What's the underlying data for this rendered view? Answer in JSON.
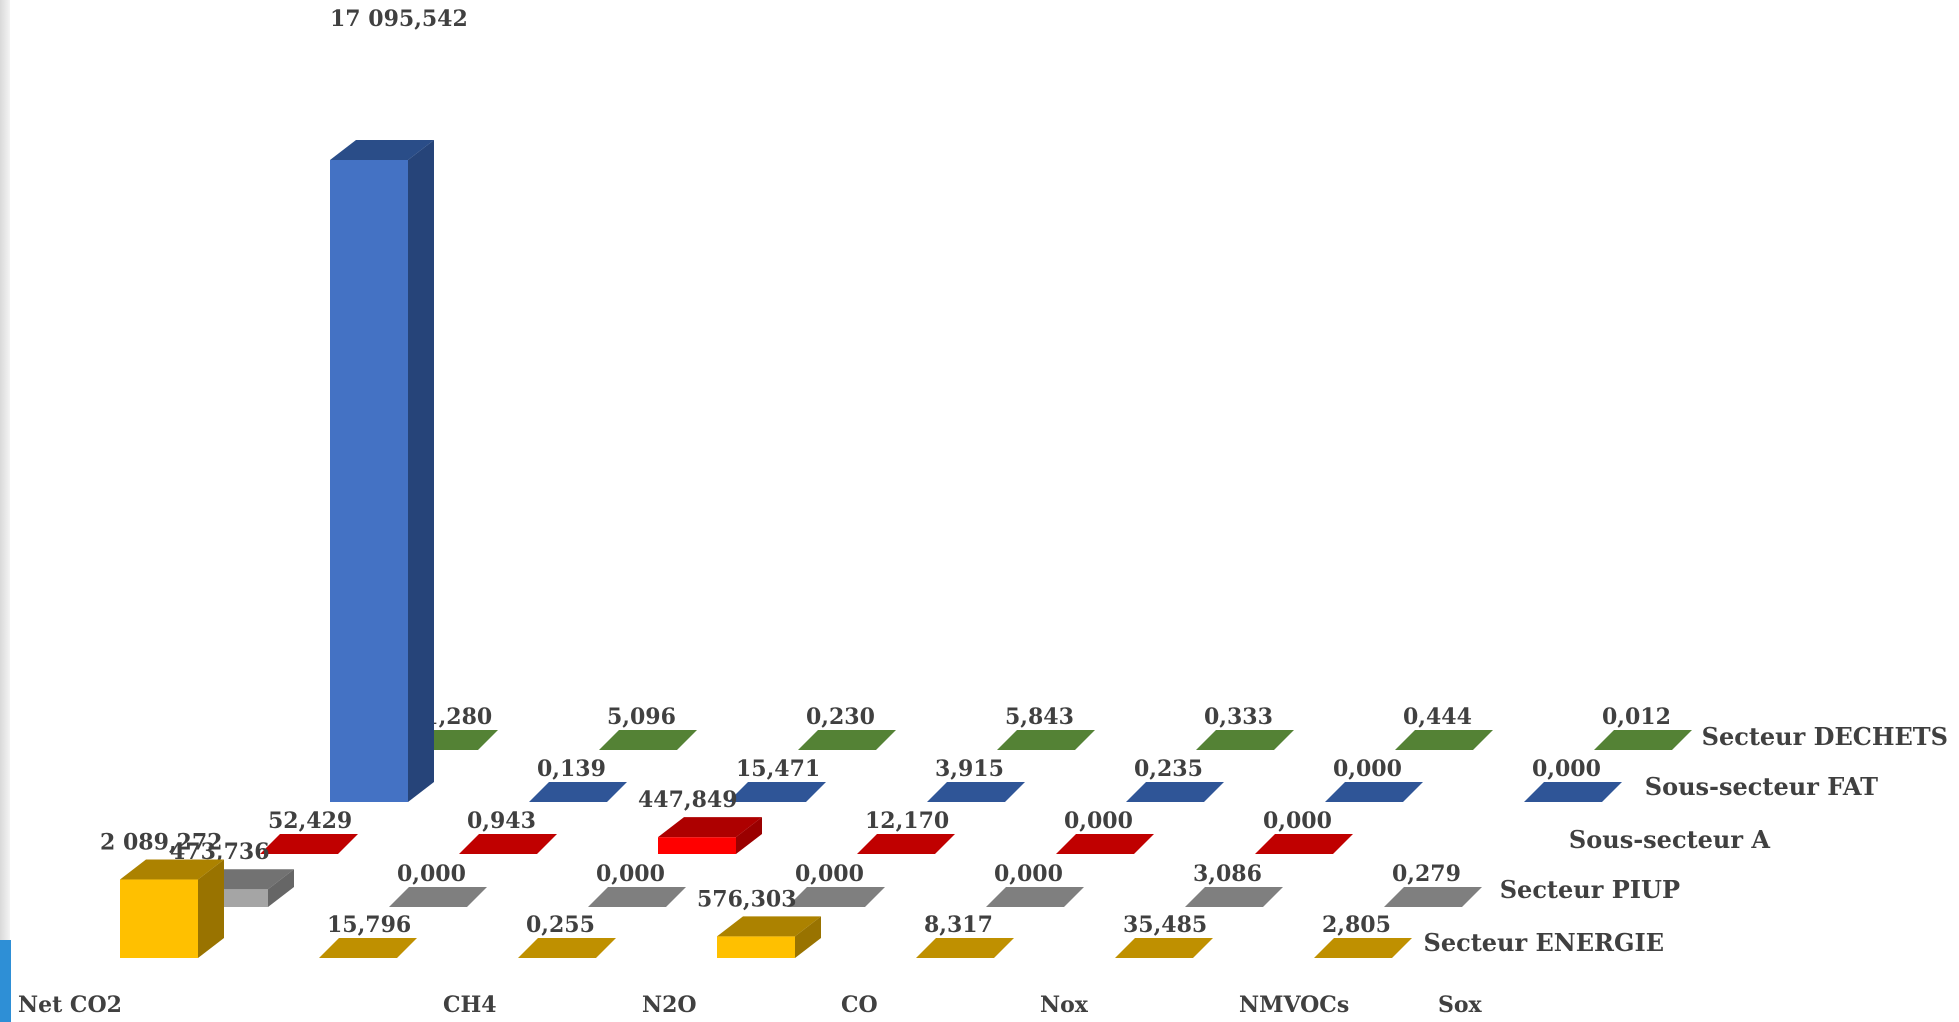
{
  "chart_data": {
    "type": "bar",
    "variant": "3d-column",
    "categories": [
      "Net CO2",
      "CH4",
      "N2O",
      "CO",
      "Nox",
      "NMVOCs",
      "Sox"
    ],
    "series": [
      {
        "name": "Secteur DECHETS",
        "color": "#548235",
        "values": [
          11.28,
          5.096,
          0.23,
          5.843,
          0.333,
          0.444,
          0.012
        ],
        "labels": [
          "11,280",
          "5,096",
          "0,230",
          "5,843",
          "0,333",
          "0,444",
          "0,012"
        ]
      },
      {
        "name": "Sous-secteur FAT",
        "color": "#2f5597",
        "values": [
          17095.542,
          0.139,
          15.471,
          3.915,
          0.235,
          0.0,
          0.0
        ],
        "labels": [
          "17 095,542",
          "0,139",
          "15,471",
          "3,915",
          "0,235",
          "0,000",
          "0,000"
        ]
      },
      {
        "name": "Sous-secteur A",
        "color": "#c00000",
        "values": [
          52.429,
          0.943,
          447.849,
          12.17,
          0.0,
          0.0,
          null
        ],
        "labels": [
          "52,429",
          "0,943",
          "447,849",
          "12,170",
          "0,000",
          "0,000",
          ""
        ]
      },
      {
        "name": "Secteur PIUP",
        "color": "#7f7f7f",
        "values": [
          473.736,
          0.0,
          0.0,
          0.0,
          0.0,
          3.086,
          0.279
        ],
        "labels": [
          "473,736",
          "0,000",
          "0,000",
          "0,000",
          "0,000",
          "3,086",
          "0,279"
        ]
      },
      {
        "name": "Secteur ENERGIE",
        "color": "#bf9000",
        "values": [
          2089.272,
          15.796,
          0.255,
          576.303,
          8.317,
          35.485,
          2.805
        ],
        "labels": [
          "2 089,272",
          "15,796",
          "0,255",
          "576,303",
          "8,317",
          "35,485",
          "2,805"
        ]
      }
    ],
    "grid": false,
    "legend": "series-axis-labels-right"
  }
}
